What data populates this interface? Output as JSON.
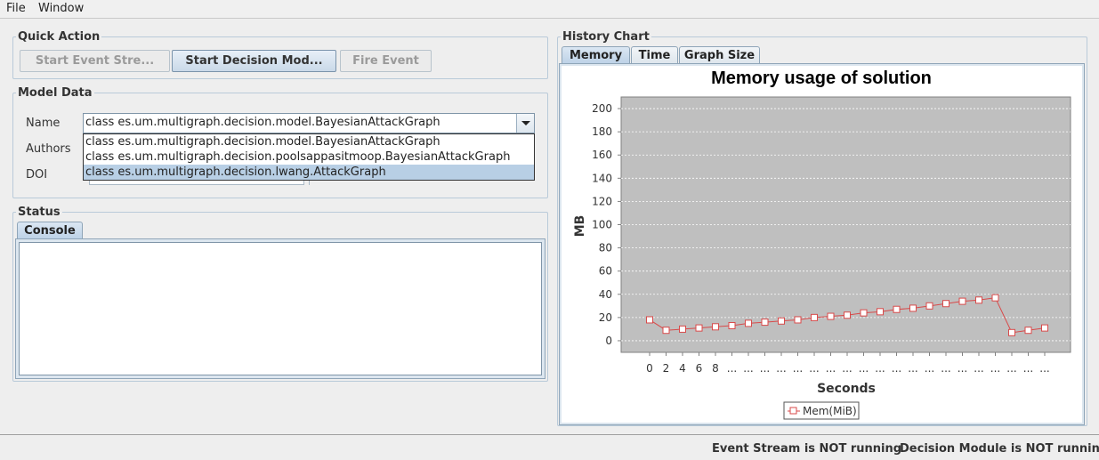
{
  "menu": {
    "file": "File",
    "window": "Window"
  },
  "quick_action": {
    "title": "Quick Action",
    "start_event_stream": "Start Event Stre...",
    "start_decision_module": "Start Decision Mod...",
    "fire_event": "Fire Event"
  },
  "model_data": {
    "title": "Model Data",
    "name_label": "Name",
    "authors_label": "Authors",
    "doi_label": "DOI",
    "name_selected": "class es.um.multigraph.decision.model.BayesianAttackGraph",
    "options": [
      "class es.um.multigraph.decision.model.BayesianAttackGraph",
      "class es.um.multigraph.decision.poolsappasitmoop.BayesianAttackGraph",
      "class es.um.multigraph.decision.lwang.AttackGraph"
    ]
  },
  "status_panel": {
    "title": "Status",
    "console_tab": "Console"
  },
  "history": {
    "title": "History Chart",
    "tabs": [
      "Memory",
      "Time",
      "Graph Size"
    ]
  },
  "colors": {
    "series": "#d84a4a",
    "plot_bg": "#bfbfbf",
    "accent": "#b8cfe5"
  },
  "chart_data": {
    "type": "line",
    "title": "Memory usage of solution",
    "xlabel": "Seconds",
    "ylabel": "MB",
    "ylim": [
      -10,
      210
    ],
    "yticks": [
      0,
      20,
      40,
      60,
      80,
      100,
      120,
      140,
      160,
      180,
      200
    ],
    "grid": true,
    "legend_position": "bottom",
    "categories": [
      "0",
      "2",
      "4",
      "6",
      "8",
      "...",
      "...",
      "...",
      "...",
      "...",
      "...",
      "...",
      "...",
      "...",
      "...",
      "...",
      "...",
      "...",
      "...",
      "...",
      "...",
      "...",
      "...",
      "...",
      "..."
    ],
    "series": [
      {
        "name": "Mem(MiB)",
        "values": [
          18,
          9,
          10,
          11,
          12,
          13,
          15,
          16,
          17,
          18,
          20,
          21,
          22,
          24,
          25,
          27,
          28,
          30,
          32,
          34,
          35,
          37,
          7,
          9,
          11
        ]
      }
    ]
  },
  "statusbar": {
    "event_stream": "Event Stream is NOT running",
    "decision_module": "Decision Module is NOT running"
  }
}
